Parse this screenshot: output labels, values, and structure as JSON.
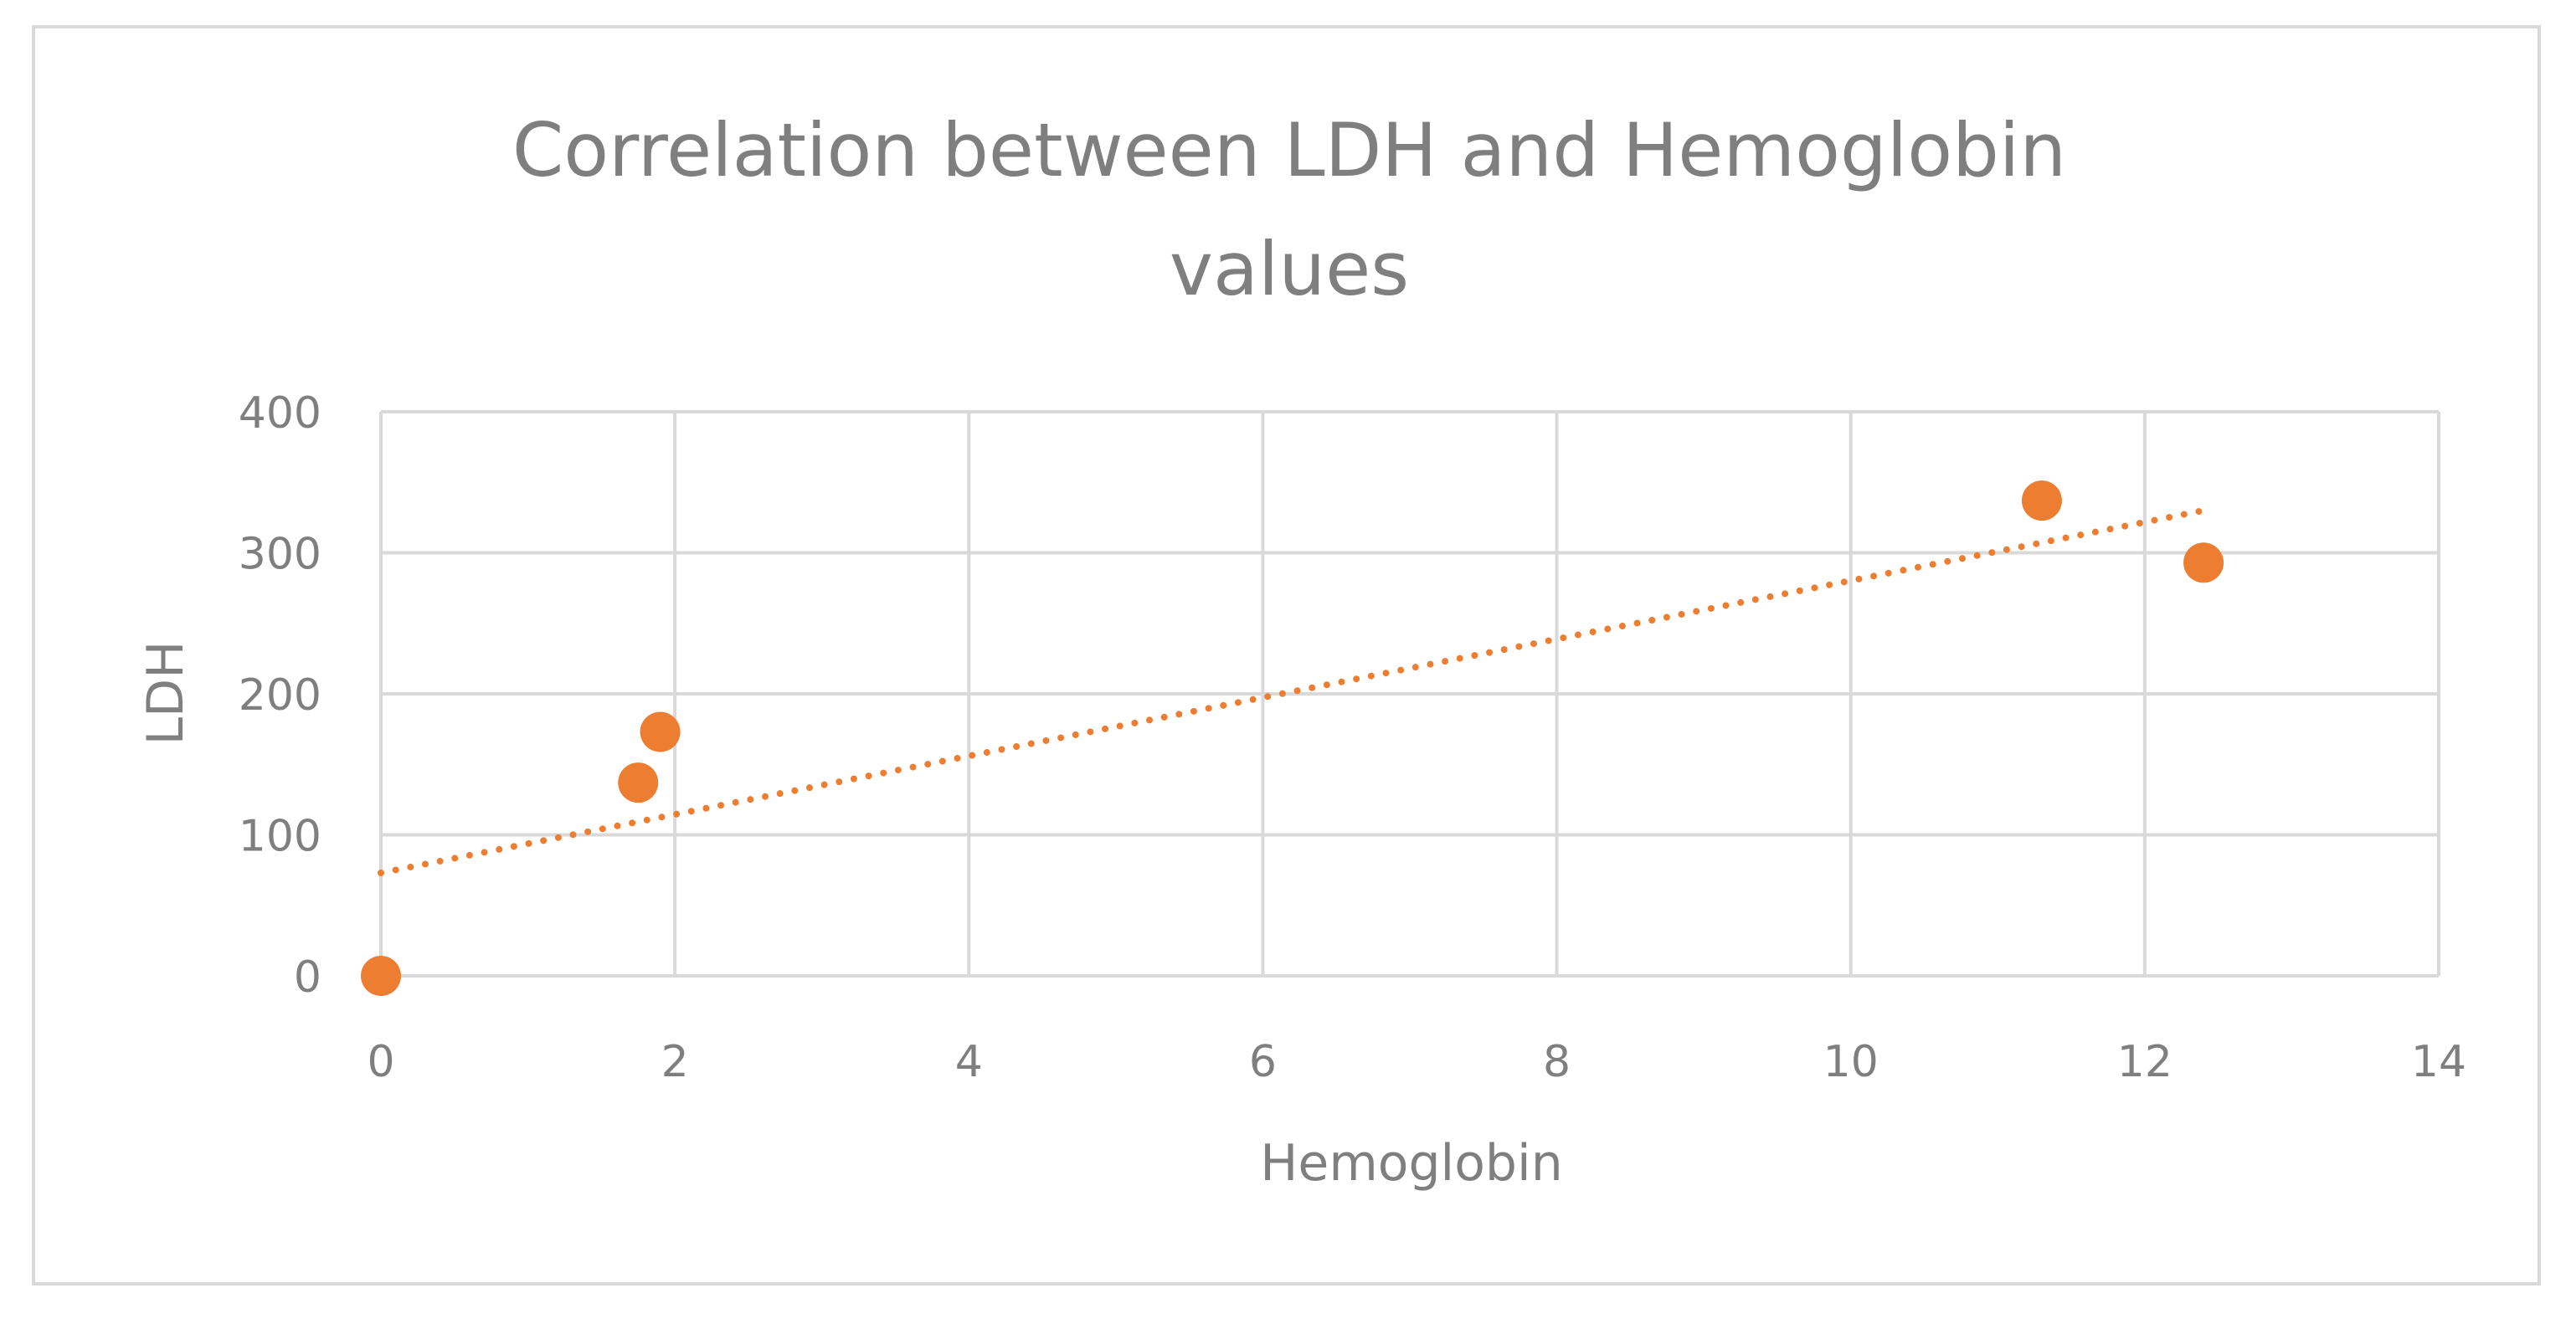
{
  "chart_data": {
    "type": "scatter",
    "title_lines": [
      "Correlation  between LDH and Hemoglobin",
      "values"
    ],
    "xlabel": "Hemoglobin",
    "ylabel": "LDH",
    "xlim": [
      0,
      14
    ],
    "ylim": [
      0,
      400
    ],
    "x_ticks": [
      0,
      2,
      4,
      6,
      8,
      10,
      12,
      14
    ],
    "y_ticks": [
      0,
      100,
      200,
      300,
      400
    ],
    "grid": true,
    "legend": "none",
    "series": [
      {
        "color": "#ed7d31",
        "points": [
          {
            "x": 0,
            "y": 0
          },
          {
            "x": 1.75,
            "y": 137
          },
          {
            "x": 1.9,
            "y": 173
          },
          {
            "x": 11.3,
            "y": 337
          },
          {
            "x": 12.4,
            "y": 293
          }
        ]
      }
    ],
    "trendline": {
      "type": "linear",
      "style": "dotted",
      "color": "#ed7d31",
      "x_range": [
        0,
        12.4
      ],
      "y_range": [
        73,
        330
      ]
    }
  }
}
